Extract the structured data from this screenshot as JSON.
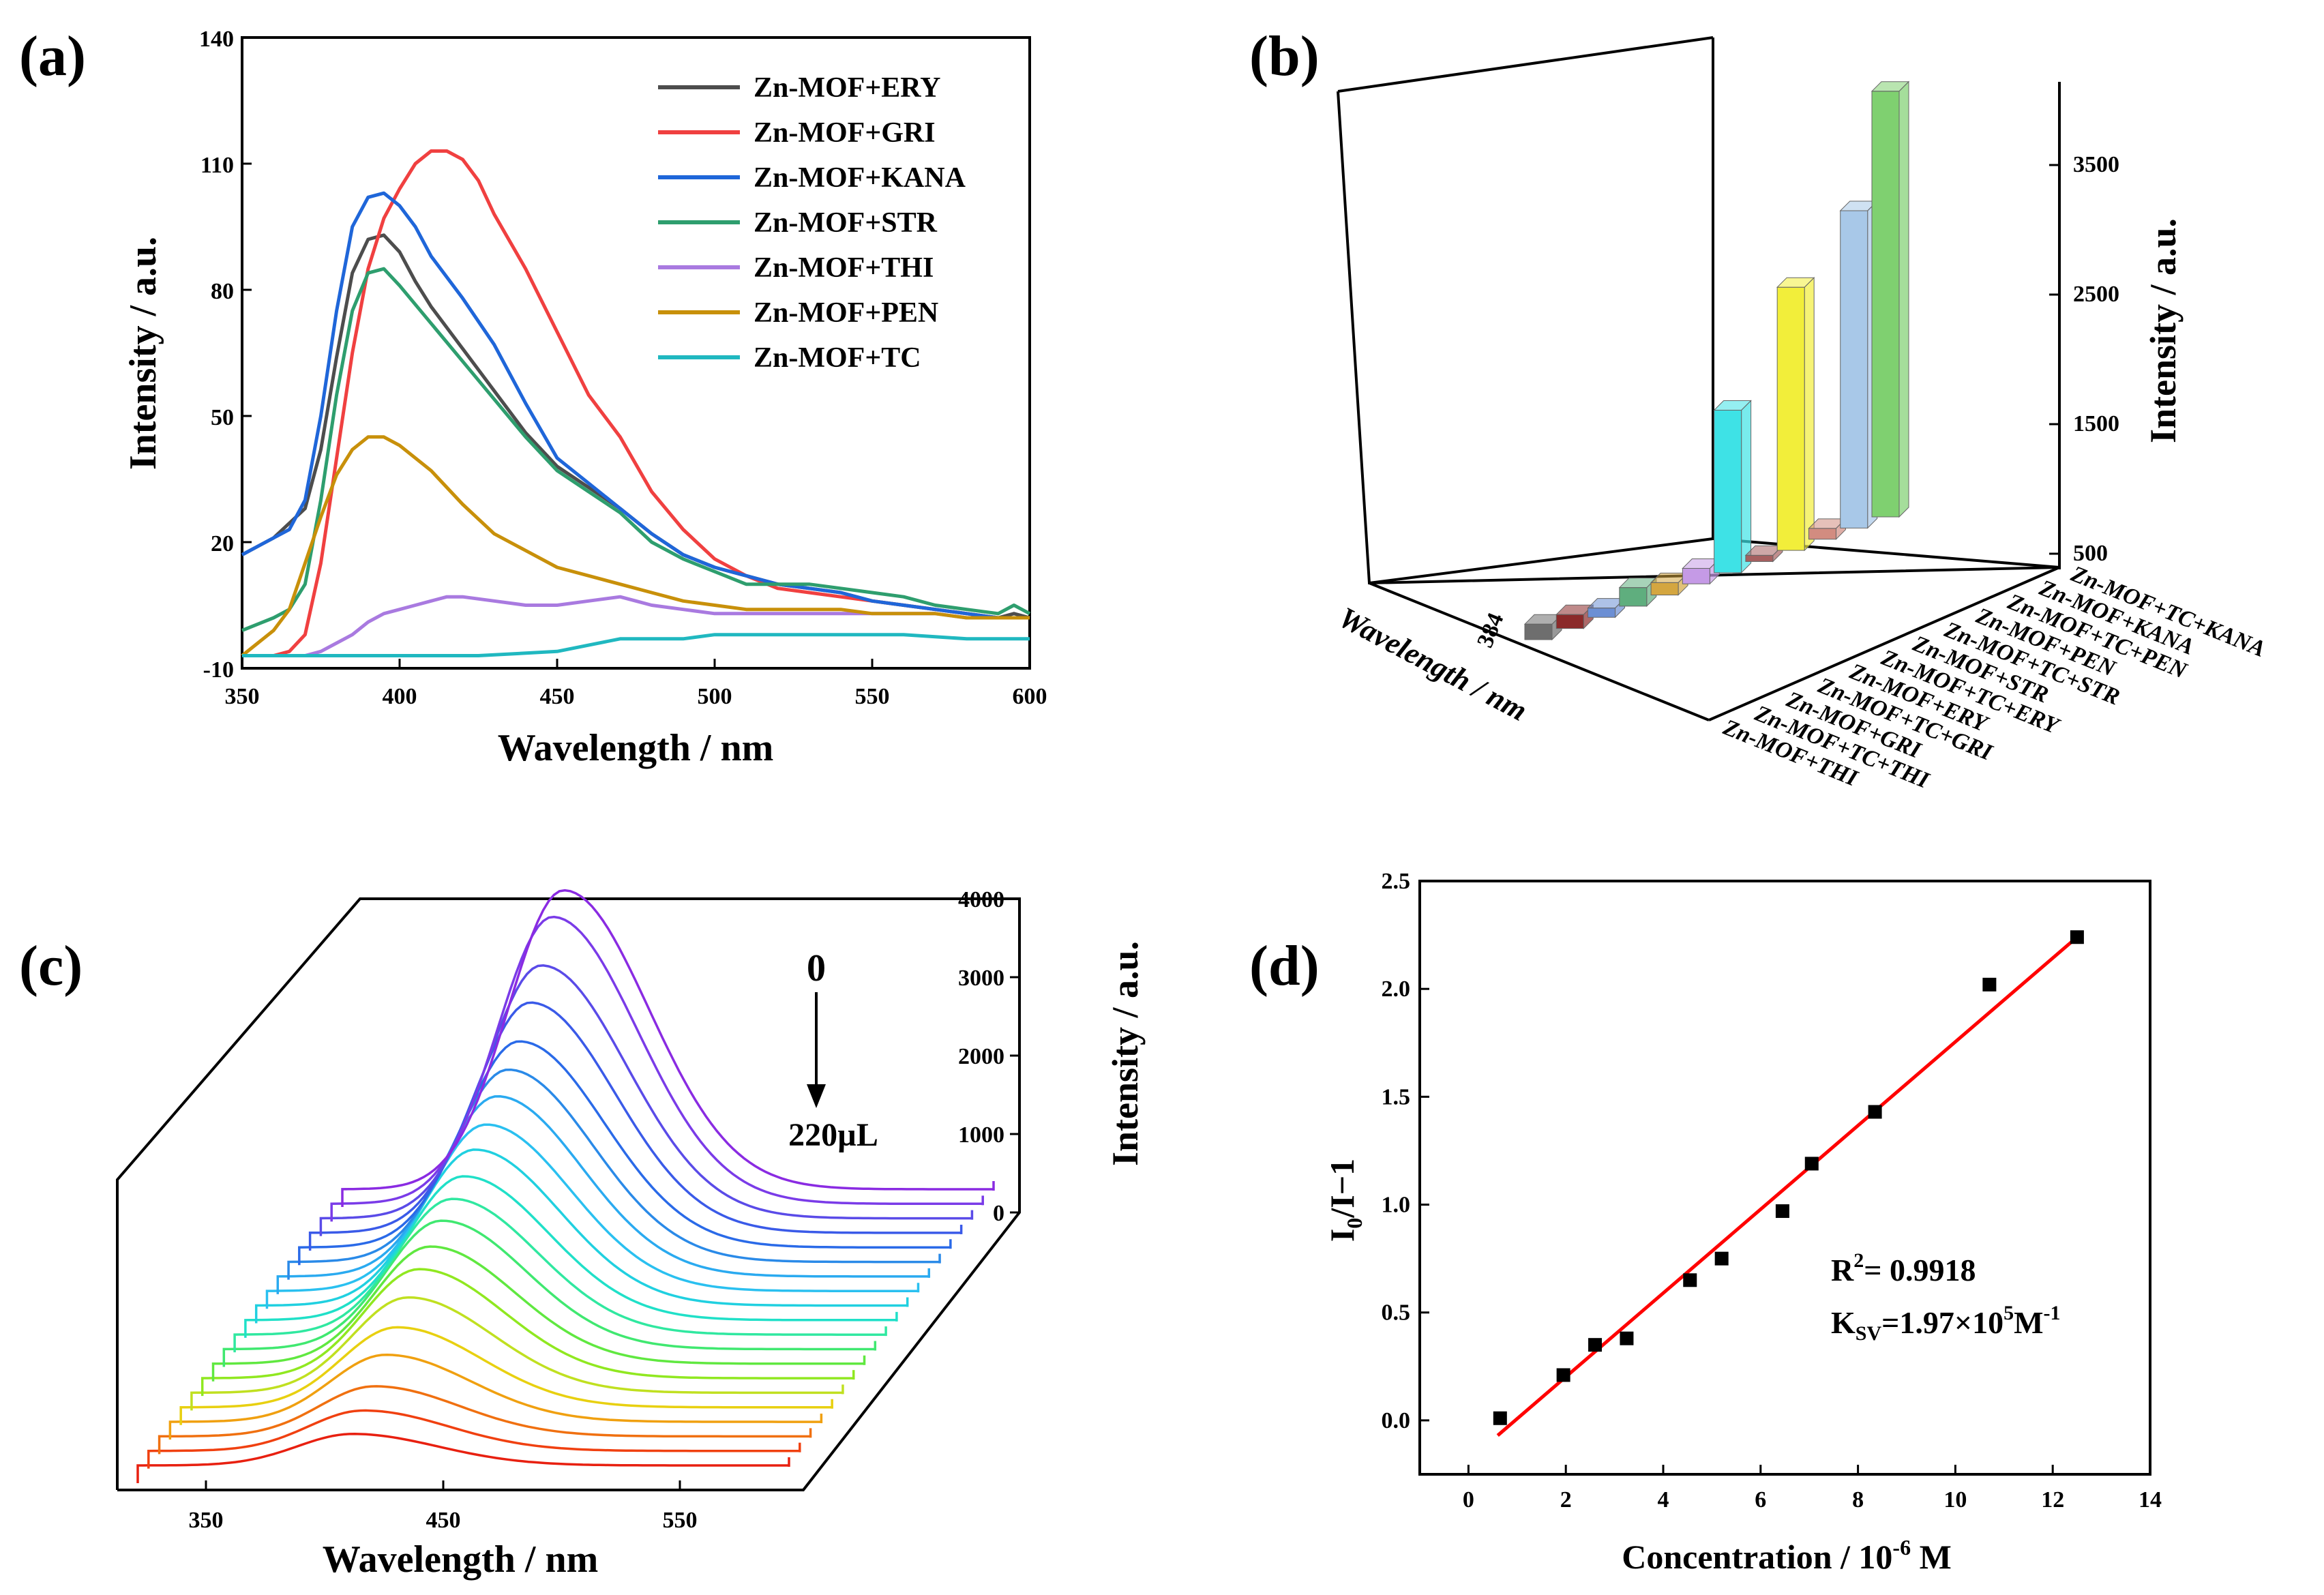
{
  "chart_data": [
    {
      "panel": "(a)",
      "type": "line",
      "xlabel": "Wavelength / nm",
      "ylabel": "Intensity / a.u.",
      "xlim": [
        350,
        600
      ],
      "ylim": [
        -10,
        140
      ],
      "xticks": [
        350,
        400,
        450,
        500,
        550,
        600
      ],
      "yticks": [
        -10,
        20,
        50,
        80,
        110,
        140
      ],
      "xtick_labels": [
        "350",
        "400",
        "450",
        "500",
        "550",
        "600"
      ],
      "ytick_labels": [
        "-10",
        "20",
        "50",
        "80",
        "110",
        "140"
      ],
      "legend": "top-right",
      "series": [
        {
          "name": "Zn-MOF+ERY",
          "color": "#4d4d4d",
          "x": [
            350,
            360,
            370,
            375,
            380,
            385,
            390,
            395,
            400,
            405,
            410,
            420,
            430,
            440,
            450,
            460,
            470,
            480,
            490,
            500,
            510,
            520,
            530,
            540,
            550,
            560,
            570,
            580,
            590,
            595,
            600
          ],
          "y": [
            17,
            21,
            28,
            42,
            64,
            84,
            92,
            93,
            89,
            82,
            76,
            66,
            56,
            46,
            38,
            33,
            28,
            22,
            17,
            14,
            12,
            10,
            9,
            8,
            6,
            5,
            4,
            3,
            2,
            3,
            2
          ]
        },
        {
          "name": "Zn-MOF+GRI",
          "color": "#f04040",
          "x": [
            350,
            360,
            365,
            370,
            375,
            380,
            385,
            390,
            395,
            400,
            405,
            410,
            415,
            420,
            425,
            430,
            440,
            450,
            460,
            470,
            480,
            490,
            500,
            510,
            520,
            530,
            540,
            550,
            560,
            570,
            580,
            590,
            600
          ],
          "y": [
            -7,
            -7,
            -6,
            -2,
            15,
            40,
            65,
            85,
            97,
            104,
            110,
            113,
            113,
            111,
            106,
            98,
            85,
            70,
            55,
            45,
            32,
            23,
            16,
            12,
            9,
            8,
            7,
            6,
            5,
            4,
            3,
            2,
            2
          ]
        },
        {
          "name": "Zn-MOF+KANA",
          "color": "#1f66d9",
          "x": [
            350,
            360,
            365,
            370,
            375,
            380,
            385,
            390,
            395,
            400,
            405,
            410,
            420,
            430,
            440,
            450,
            460,
            470,
            480,
            490,
            500,
            510,
            520,
            530,
            540,
            550,
            560,
            570,
            580,
            590,
            600
          ],
          "y": [
            17,
            21,
            23,
            30,
            50,
            75,
            95,
            102,
            103,
            100,
            95,
            88,
            78,
            67,
            53,
            40,
            34,
            28,
            22,
            17,
            14,
            12,
            10,
            9,
            8,
            6,
            5,
            4,
            3,
            2,
            2
          ]
        },
        {
          "name": "Zn-MOF+STR",
          "color": "#2e9e6e",
          "x": [
            350,
            360,
            365,
            370,
            375,
            380,
            385,
            390,
            395,
            400,
            410,
            420,
            430,
            440,
            450,
            460,
            470,
            480,
            490,
            500,
            510,
            520,
            530,
            540,
            550,
            560,
            570,
            580,
            590,
            595,
            600
          ],
          "y": [
            -1,
            2,
            4,
            10,
            30,
            55,
            75,
            84,
            85,
            81,
            72,
            63,
            54,
            45,
            37,
            32,
            27,
            20,
            16,
            13,
            10,
            10,
            10,
            9,
            8,
            7,
            5,
            4,
            3,
            5,
            3
          ]
        },
        {
          "name": "Zn-MOF+THI",
          "color": "#a97ae0",
          "x": [
            350,
            370,
            375,
            380,
            385,
            390,
            395,
            400,
            405,
            410,
            415,
            420,
            430,
            440,
            450,
            460,
            470,
            475,
            480,
            490,
            500,
            510,
            520,
            530,
            540,
            550,
            560,
            570,
            580,
            590,
            600
          ],
          "y": [
            -7,
            -7,
            -6,
            -4,
            -2,
            1,
            3,
            4,
            5,
            6,
            7,
            7,
            6,
            5,
            5,
            6,
            7,
            6,
            5,
            4,
            3,
            3,
            3,
            3,
            3,
            3,
            3,
            3,
            2,
            2,
            2
          ]
        },
        {
          "name": "Zn-MOF+PEN",
          "color": "#c8900a",
          "x": [
            350,
            360,
            365,
            370,
            375,
            380,
            385,
            390,
            395,
            400,
            405,
            410,
            420,
            430,
            440,
            450,
            460,
            470,
            480,
            490,
            500,
            510,
            520,
            530,
            540,
            550,
            560,
            570,
            580,
            590,
            600
          ],
          "y": [
            -7,
            -1,
            4,
            15,
            26,
            36,
            42,
            45,
            45,
            43,
            40,
            37,
            29,
            22,
            18,
            14,
            12,
            10,
            8,
            6,
            5,
            4,
            4,
            4,
            4,
            3,
            3,
            3,
            2,
            2,
            2
          ]
        },
        {
          "name": "Zn-MOF+TC",
          "color": "#20b8c0",
          "x": [
            350,
            375,
            400,
            425,
            450,
            470,
            480,
            490,
            500,
            520,
            540,
            560,
            580,
            600
          ],
          "y": [
            -7,
            -7,
            -7,
            -7,
            -6,
            -3,
            -3,
            -3,
            -2,
            -2,
            -2,
            -2,
            -3,
            -3
          ]
        }
      ]
    },
    {
      "panel": "(b)",
      "type": "bar",
      "xlabel": "Wavelength / nm",
      "xtick": "384",
      "zlabel": "Intensity / a.u.",
      "ztick_labels": [
        "500",
        "1500",
        "2500",
        "3500"
      ],
      "categories": [
        "Zn-MOF+THI",
        "Zn-MOF+TC+THI",
        "Zn-MOF+GRI",
        "Zn-MOF+TC+GRI",
        "Zn-MOF+ERY",
        "Zn-MOF+TC+ERY",
        "Zn-MOF+STR",
        "Zn-MOF+TC+STR",
        "Zn-MOF+PEN",
        "Zn-MOF+TC+PEN",
        "Zn-MOF+KANA",
        "Zn-MOF+TC+KANA"
      ],
      "values": [
        100,
        90,
        60,
        120,
        80,
        100,
        1050,
        40,
        1700,
        70,
        2050,
        2750
      ],
      "colors": [
        "#6e6e6e",
        "#8b2a2a",
        "#6c8fd4",
        "#5fae7e",
        "#d4a640",
        "#c59ae6",
        "#3ee2e6",
        "#a66060",
        "#f2ee3a",
        "#d28c80",
        "#a8c8e8",
        "#7fd070"
      ]
    },
    {
      "panel": "(c)",
      "type": "line",
      "xlabel": "Wavelength / nm",
      "ylabel": "Intensity / a.u.",
      "xtick_labels": [
        "350",
        "450",
        "550"
      ],
      "ytick_labels": [
        "0",
        "1000",
        "2000",
        "3000",
        "4000"
      ],
      "annotation_top": "0",
      "annotation_bottom": "220µL",
      "series_count": 20,
      "peak_heights": [
        3700,
        3550,
        3130,
        2850,
        2550,
        2380,
        2230,
        2060,
        1930,
        1780,
        1680,
        1590,
        1450,
        1350,
        1180,
        990,
        830,
        620,
        500,
        390
      ],
      "colors": [
        "#8a2be2",
        "#7a3be8",
        "#5a4be8",
        "#3a5ae8",
        "#2a6ae8",
        "#2a8ae8",
        "#2aaaf0",
        "#2ac0f0",
        "#20d0e0",
        "#20e0c8",
        "#30e8a0",
        "#40e870",
        "#60e840",
        "#90e820",
        "#c0e020",
        "#e8d010",
        "#f0a010",
        "#f07010",
        "#f04010",
        "#e82010"
      ]
    },
    {
      "panel": "(d)",
      "type": "scatter",
      "xlabel": "Concentration / 10",
      "xlabel_exp": "-6",
      "xlabel_unit": " M",
      "ylabel": "I",
      "ylabel_sub": "0",
      "ylabel_rest": "/I−1",
      "xlim": [
        -1,
        14
      ],
      "ylim": [
        -0.25,
        2.5
      ],
      "xticks": [
        0,
        2,
        4,
        6,
        8,
        10,
        12,
        14
      ],
      "yticks": [
        0.0,
        0.5,
        1.0,
        1.5,
        2.0,
        2.5
      ],
      "xtick_labels": [
        "0",
        "2",
        "4",
        "6",
        "8",
        "10",
        "12",
        "14"
      ],
      "ytick_labels": [
        "0.0",
        "0.5",
        "1.0",
        "1.5",
        "2.0",
        "2.5"
      ],
      "x": [
        0.65,
        1.95,
        2.6,
        3.25,
        4.55,
        5.2,
        6.45,
        7.05,
        8.35,
        10.7,
        12.5
      ],
      "y": [
        0.01,
        0.21,
        0.35,
        0.38,
        0.65,
        0.75,
        0.97,
        1.19,
        1.43,
        2.02,
        2.24
      ],
      "fit": {
        "x": [
          0.6,
          12.5
        ],
        "y": [
          -0.07,
          2.24
        ],
        "color": "#ff0000"
      },
      "r2_label": "R",
      "r2_exp": "2",
      "r2_value": "= 0.9918",
      "ksv_label": "K",
      "ksv_sub": "SV",
      "ksv_value": "=1.97×10",
      "ksv_exp1": "5",
      "ksv_unit": "M",
      "ksv_exp2": "-1"
    }
  ]
}
